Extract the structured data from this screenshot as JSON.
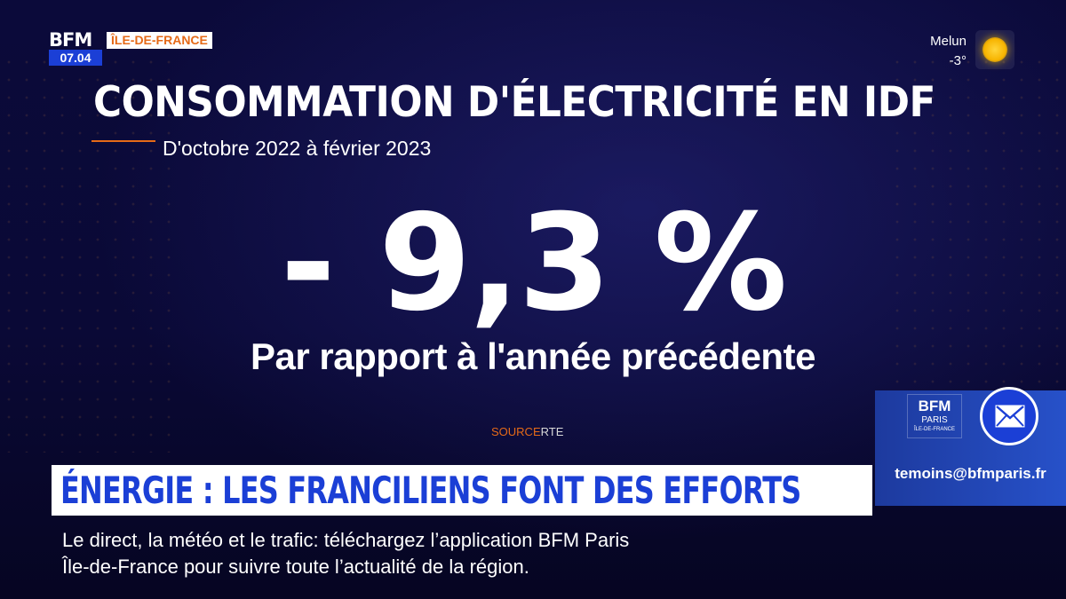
{
  "logo": {
    "brand": "BFM",
    "time": "07.04",
    "region": "ÎLE-DE-FRANCE"
  },
  "weather": {
    "city": "Melun",
    "temperature": "-3°",
    "icon": "sun-icon"
  },
  "title": "CONSOMMATION D'ÉLECTRICITÉ EN IDF",
  "subtitle": "D'octobre 2022 à février 2023",
  "stat": {
    "value": "- 9,3 %",
    "caption": "Par rapport à l'année précédente"
  },
  "source": {
    "label": "SOURCE",
    "value": "RTE"
  },
  "contact": {
    "logo_brand": "BFM",
    "logo_city": "PARIS",
    "logo_region": "ÎLE-DE-FRANCE",
    "email": "temoins@bfmparis.fr",
    "icon": "mail-icon"
  },
  "headline": "ÉNERGIE : LES FRANCILIENS FONT DES EFFORTS",
  "ticker": {
    "line1": "Le direct, la météo et le trafic: téléchargez l’application BFM Paris",
    "line2": "Île-de-France pour suivre toute l’actualité de la région."
  },
  "colors": {
    "accent_orange": "#e56a18",
    "brand_blue": "#1b3fd6",
    "background": "#0a0936"
  }
}
